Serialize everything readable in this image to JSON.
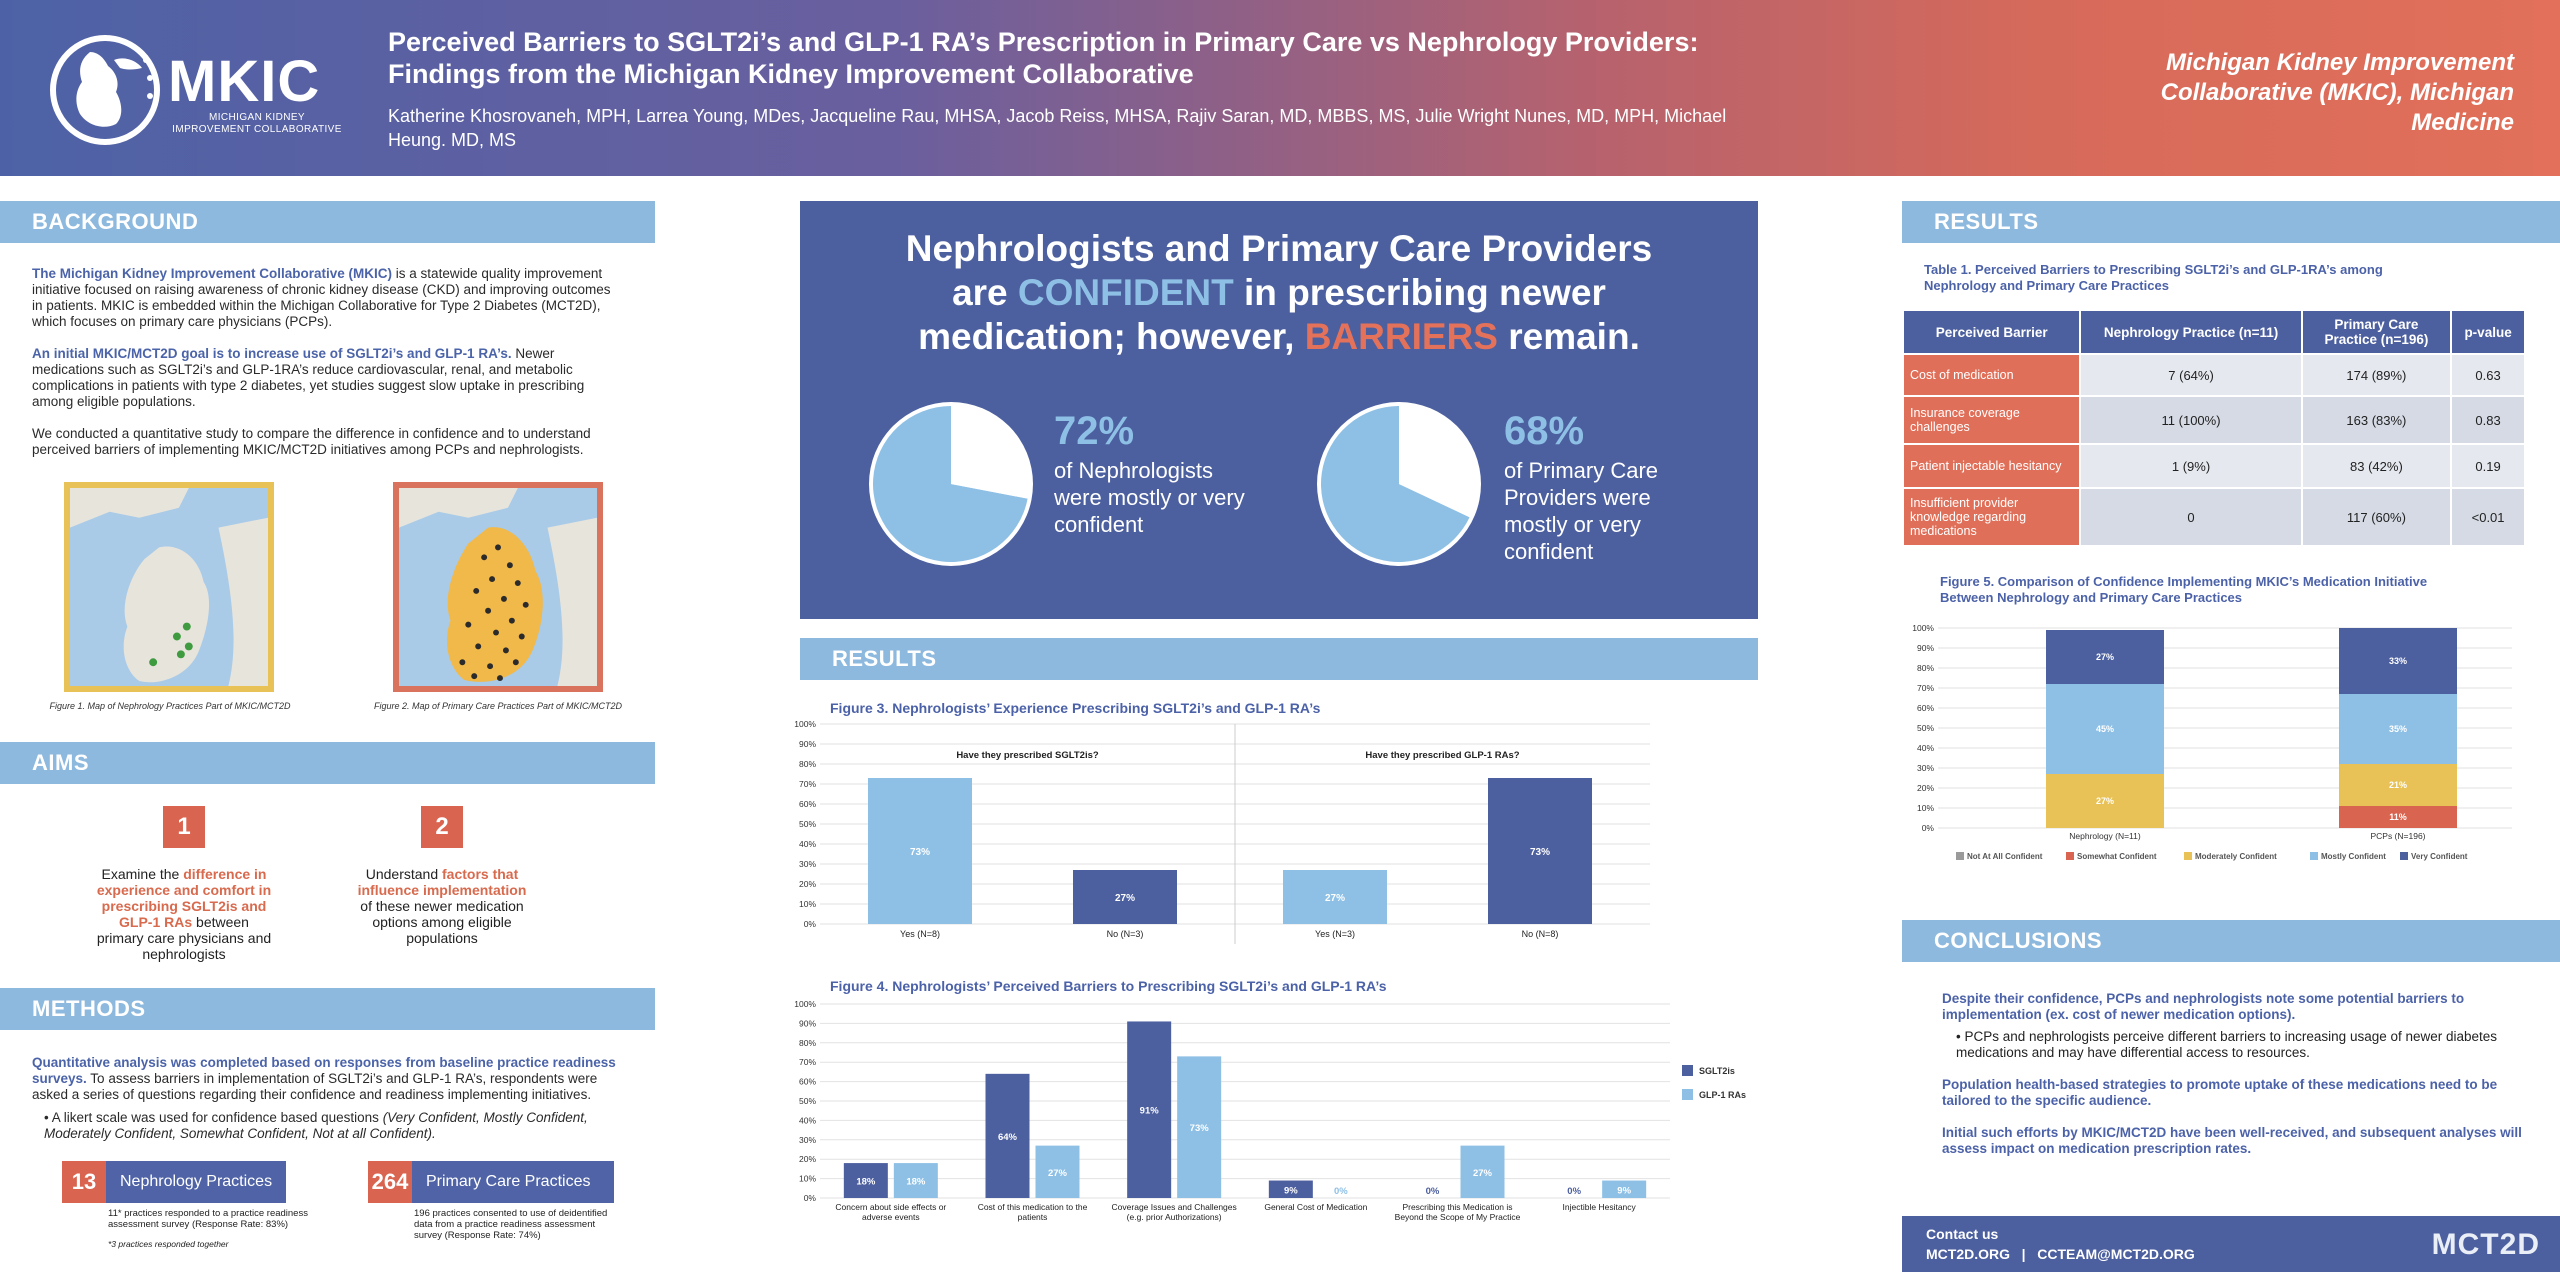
{
  "header": {
    "logo_text": "MKIC",
    "logo_sub": "MICHIGAN KIDNEY IMPROVEMENT COLLABORATIVE",
    "title": "Perceived Barriers to SGLT2i’s and GLP-1 RA’s Prescription in Primary Care vs Nephrology Providers: Findings from the Michigan Kidney Improvement Collaborative",
    "authors": "Katherine Khosrovaneh, MPH, Larrea Young, MDes, Jacqueline Rau, MHSA, Jacob Reiss, MHSA, Rajiv Saran, MD, MBBS, MS, Julie Wright Nunes, MD, MPH, Michael Heung. MD, MS",
    "affiliation": "Michigan Kidney Improvement Collaborative (MKIC), Michigan Medicine"
  },
  "background": {
    "heading": "BACKGROUND",
    "p1_highlight": "The Michigan Kidney Improvement Collaborative (MKIC)",
    "p1_rest": " is a statewide quality improvement initiative focused on raising awareness of chronic kidney disease (CKD) and improving outcomes in patients. MKIC is embedded within the Michigan Collaborative for Type 2 Diabetes (MCT2D), which focuses on primary care physicians (PCPs).",
    "p2_highlight": "An initial MKIC/MCT2D goal is to increase use of SGLT2i’s and GLP-1 RA’s.",
    "p2_rest": " Newer medications such as SGLT2i’s and GLP-1RA’s reduce cardiovascular, renal, and metabolic complications in patients with type 2 diabetes, yet studies suggest slow uptake in prescribing among eligible populations.",
    "p3": "We conducted a quantitative study to compare the difference in confidence and to understand perceived barriers of implementing MKIC/MCT2D initiatives among PCPs and nephrologists.",
    "fig1_caption": "Figure 1. Map of Nephrology Practices Part of MKIC/MCT2D",
    "fig2_caption": "Figure 2. Map of Primary Care Practices Part of MKIC/MCT2D"
  },
  "aims": {
    "heading": "AIMS",
    "aim1_num": "1",
    "aim1_pre": "Examine the ",
    "aim1_hl": "difference in experience and comfort in prescribing SGLT2is and GLP-1 RAs",
    "aim1_post": " between primary care physicians and nephrologists",
    "aim2_num": "2",
    "aim2_pre": "Understand ",
    "aim2_hl": "factors that influence implementation",
    "aim2_post": " of these newer medication options among eligible populations"
  },
  "methods": {
    "heading": "METHODS",
    "p1_highlight": "Quantitative analysis was completed based on responses from baseline practice readiness surveys.",
    "p1_rest": " To assess barriers in implementation of SGLT2i’s and GLP-1 RA’s, respondents were asked a series of questions regarding their confidence and readiness implementing initiatives.",
    "bullet_pre": "A likert scale was used for confidence based questions ",
    "bullet_italic": "(Very Confident, Mostly Confident, Moderately Confident, Somewhat Confident, Not at all Confident).",
    "neph_count": "13",
    "neph_label": "Nephrology Practices",
    "neph_note": "11* practices responded to a practice readiness assessment survey (Response Rate: 83%)",
    "neph_footnote": "*3 practices responded together",
    "pcp_count": "264",
    "pcp_label": "Primary Care Practices",
    "pcp_note": "196 practices consented to use of deidentified data from a practice readiness assessment survey (Response Rate: 74%)"
  },
  "center": {
    "headline_1": "Nephrologists and Primary Care Providers",
    "headline_2a": "are ",
    "headline_2b": "CONFIDENT",
    "headline_2c": " in prescribing newer",
    "headline_3a": "medication; however, ",
    "headline_3b": "BARRIERS",
    "headline_3c": " remain.",
    "neph_pct": "72%",
    "neph_pct_value": 72,
    "neph_text": "of Nephrologists were mostly or very confident",
    "pcp_pct": "68%",
    "pcp_pct_value": 68,
    "pcp_text": "of Primary Care Providers were mostly or very confident"
  },
  "results_mid": {
    "heading": "RESULTS",
    "fig3_title": "Figure 3. Nephrologists’ Experience Prescribing SGLT2i’s and GLP-1 RA’s",
    "fig4_title": "Figure 4.  Nephrologists’ Perceived Barriers to Prescribing SGLT2i’s and GLP-1 RA’s"
  },
  "results_right": {
    "heading": "RESULTS",
    "table_title": "Table 1. Perceived Barriers to Prescribing SGLT2i’s and GLP-1RA’s among Nephrology and Primary Care Practices",
    "columns": [
      "Perceived Barrier",
      "Nephrology Practice (n=11)",
      "Primary Care Practice (n=196)",
      "p-value"
    ],
    "rows": [
      [
        "Cost of medication",
        "7 (64%)",
        "174 (89%)",
        "0.63"
      ],
      [
        "Insurance coverage challenges",
        "11 (100%)",
        "163 (83%)",
        "0.83"
      ],
      [
        "Patient injectable hesitancy",
        "1 (9%)",
        "83 (42%)",
        "0.19"
      ],
      [
        "Insufficient provider knowledge regarding medications",
        "0",
        "117 (60%)",
        "<0.01"
      ]
    ],
    "fig5_title": "Figure 5. Comparison of Confidence Implementing MKIC’s Medication Initiative Between Nephrology and Primary Care Practices"
  },
  "conclusions": {
    "heading": "CONCLUSIONS",
    "c1": "Despite their confidence, PCPs and nephrologists note some potential barriers to implementation (ex. cost of newer medication options).",
    "c1_bullet": "PCPs and nephrologists perceive different barriers to increasing usage of newer diabetes medications and may have differential access to resources.",
    "c2": "Population health-based strategies to promote uptake of these medications need to be tailored to the specific audience.",
    "c3": "Initial such efforts by MKIC/MCT2D have been well-received, and subsequent analyses will assess impact on medication prescription rates."
  },
  "footer": {
    "contact": "Contact us",
    "line": "MCT2D.ORG   |   CCTEAM@MCT2D.ORG",
    "logo": "MCT2D"
  },
  "colors": {
    "dark_blue": "#4c5f9f",
    "light_blue": "#8ec0e6",
    "red": "#d9644f",
    "yellow": "#e8c257"
  },
  "chart_data": [
    {
      "type": "bar",
      "id": "fig3",
      "title": "Figure 3. Nephrologists’ Experience Prescribing SGLT2i’s and GLP-1 RA’s",
      "ylim": [
        0,
        100
      ],
      "yticks": [
        "0%",
        "10%",
        "20%",
        "30%",
        "40%",
        "50%",
        "60%",
        "70%",
        "80%",
        "90%",
        "100%"
      ],
      "panels": [
        {
          "subtitle": "Have they prescribed SGLT2is?",
          "categories": [
            "Yes (N=8)",
            "No  (N=3)"
          ],
          "values": [
            73,
            27
          ],
          "labels": [
            "73%",
            "27%"
          ],
          "colors": [
            "#8ec0e6",
            "#4c5f9f"
          ]
        },
        {
          "subtitle": "Have they prescribed GLP-1 RAs?",
          "categories": [
            "Yes  (N=3)",
            "No   (N=8)"
          ],
          "values": [
            27,
            73
          ],
          "labels": [
            "27%",
            "73%"
          ],
          "colors": [
            "#8ec0e6",
            "#4c5f9f"
          ]
        }
      ]
    },
    {
      "type": "bar",
      "id": "fig4",
      "title": "Figure 4.  Nephrologists’ Perceived Barriers to Prescribing SGLT2i’s and GLP-1 RA’s",
      "ylim": [
        0,
        100
      ],
      "yticks": [
        "0%",
        "10%",
        "20%",
        "30%",
        "40%",
        "50%",
        "60%",
        "70%",
        "80%",
        "90%",
        "100%"
      ],
      "categories": [
        [
          "Concern about side effects or",
          "adverse events"
        ],
        [
          "Cost of this medication to the",
          "patients"
        ],
        [
          "Coverage Issues and Challenges",
          "(e.g. prior Authorizations)"
        ],
        [
          "General Cost of Medication",
          ""
        ],
        [
          "Prescribing this Medication is",
          "Beyond the Scope of My Practice"
        ],
        [
          "Injectible Hesitancy",
          ""
        ]
      ],
      "series": [
        {
          "name": "SGLT2is",
          "color": "#4c5f9f",
          "values": [
            18,
            64,
            91,
            9,
            0,
            0
          ],
          "labels": [
            "18%",
            "64%",
            "91%",
            "9%",
            "0%",
            "0%"
          ]
        },
        {
          "name": "GLP-1 RAs",
          "color": "#8ec0e6",
          "values": [
            18,
            27,
            73,
            0,
            27,
            9
          ],
          "labels": [
            "18%",
            "27%",
            "73%",
            "0%",
            "27%",
            "9%"
          ]
        }
      ]
    },
    {
      "type": "bar",
      "id": "fig5",
      "stacked": true,
      "title": "Figure 5. Comparison of Confidence Implementing MKIC’s Medication Initiative Between Nephrology and Primary Care Practices",
      "ylim": [
        0,
        100
      ],
      "yticks": [
        "0%",
        "10%",
        "20%",
        "30%",
        "40%",
        "50%",
        "60%",
        "70%",
        "80%",
        "90%",
        "100%"
      ],
      "categories": [
        "Nephrology (N=11)",
        "PCPs (N=196)"
      ],
      "series": [
        {
          "name": "Not At All Confident",
          "color": "#9a9a9a",
          "values": [
            0,
            0
          ],
          "labels": [
            "",
            ""
          ]
        },
        {
          "name": "Somewhat Confident",
          "color": "#d9644f",
          "values": [
            0,
            11
          ],
          "labels": [
            "",
            "11%"
          ]
        },
        {
          "name": "Moderately Confident",
          "color": "#e8c257",
          "values": [
            27,
            21
          ],
          "labels": [
            "27%",
            "21%"
          ]
        },
        {
          "name": "Mostly Confident",
          "color": "#8ec0e6",
          "values": [
            45,
            35
          ],
          "labels": [
            "45%",
            "35%"
          ]
        },
        {
          "name": "Very Confident",
          "color": "#4c5f9f",
          "values": [
            27,
            33
          ],
          "labels": [
            "27%",
            "33%"
          ]
        }
      ]
    }
  ]
}
